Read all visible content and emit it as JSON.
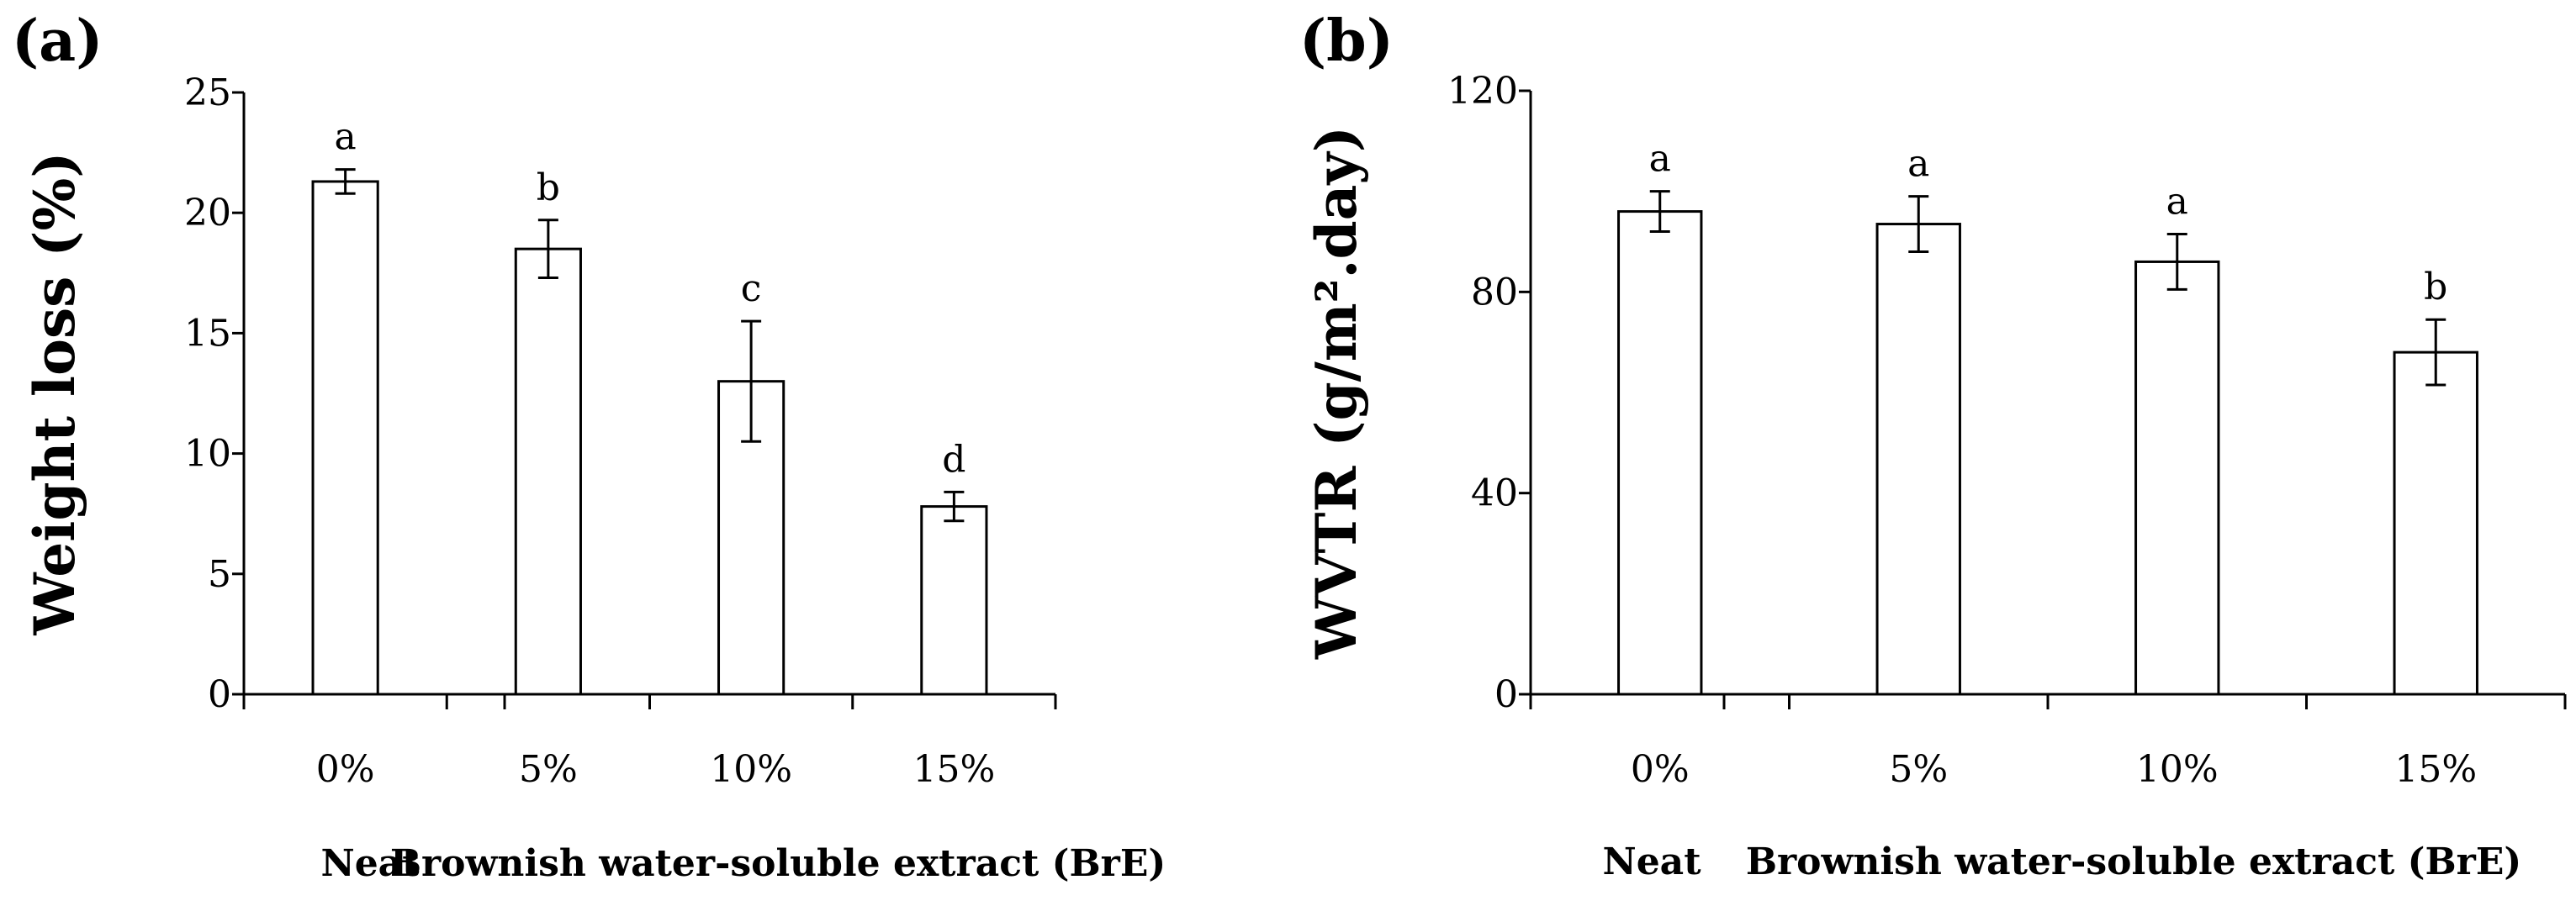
{
  "chart_data": [
    {
      "type": "bar",
      "panel_label": "(a)",
      "ylabel": "Weight loss (%)",
      "xlabel": "",
      "categories": [
        "0%",
        "5%",
        "10%",
        "15%"
      ],
      "values": [
        21.3,
        18.5,
        13.0,
        7.8
      ],
      "errors": [
        0.5,
        1.2,
        2.5,
        0.6
      ],
      "significance": [
        "a",
        "b",
        "c",
        "d"
      ],
      "ylim": [
        0,
        25
      ],
      "yticks": [
        0,
        5,
        10,
        15,
        20,
        25
      ],
      "group_labels": [
        "Neat",
        "Brownish water-soluble extract (BrE)"
      ],
      "grid": false
    },
    {
      "type": "bar",
      "panel_label": "(b)",
      "ylabel": "WVTR (g/m².day)",
      "xlabel": "",
      "categories": [
        "0%",
        "5%",
        "10%",
        "15%"
      ],
      "values": [
        96,
        93.5,
        86,
        68
      ],
      "errors": [
        4,
        5.5,
        5.5,
        6.5
      ],
      "significance": [
        "a",
        "a",
        "a",
        "b"
      ],
      "ylim": [
        0,
        120
      ],
      "yticks": [
        0,
        40,
        80,
        120
      ],
      "group_labels": [
        "Neat",
        "Brownish water-soluble extract (BrE)"
      ],
      "grid": false
    }
  ]
}
